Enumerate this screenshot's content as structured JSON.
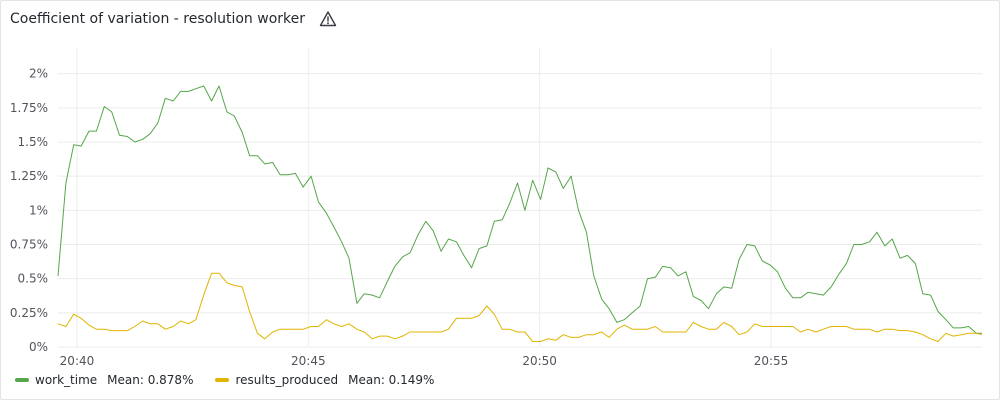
{
  "panel": {
    "title": "Coefficient of variation - resolution worker",
    "warning_icon": "warning-triangle-icon"
  },
  "legend": [
    {
      "name": "work_time",
      "mean_label": "Mean: 0.878%",
      "color": "#56a64b"
    },
    {
      "name": "results_produced",
      "mean_label": "Mean: 0.149%",
      "color": "#e0b400"
    }
  ],
  "colors": {
    "grid": "#ececec",
    "axis_text": "#52545c"
  },
  "chart_data": {
    "type": "line",
    "title": "Coefficient of variation - resolution worker",
    "xlabel": "",
    "ylabel": "",
    "x_unit": "minutes",
    "xlim": [
      39.59,
      59.56
    ],
    "ylim": [
      0,
      2.1
    ],
    "y_ticks": [
      {
        "value": 0,
        "label": "0%"
      },
      {
        "value": 0.25,
        "label": "0.25%"
      },
      {
        "value": 0.5,
        "label": "0.5%"
      },
      {
        "value": 0.75,
        "label": "0.75%"
      },
      {
        "value": 1,
        "label": "1%"
      },
      {
        "value": 1.25,
        "label": "1.25%"
      },
      {
        "value": 1.5,
        "label": "1.5%"
      },
      {
        "value": 1.75,
        "label": "1.75%"
      },
      {
        "value": 2,
        "label": "2%"
      }
    ],
    "x_ticks": [
      {
        "value": 40,
        "label": "20:40"
      },
      {
        "value": 45,
        "label": "20:45"
      },
      {
        "value": 50,
        "label": "20:50"
      },
      {
        "value": 55,
        "label": "20:55"
      }
    ],
    "grid": true,
    "legend_position": "bottom-left",
    "series": [
      {
        "name": "work_time",
        "color": "#56a64b",
        "x": [
          39.59,
          39.76,
          39.93,
          40.09,
          40.26,
          40.42,
          40.59,
          40.75,
          40.92,
          41.09,
          41.25,
          41.42,
          41.58,
          41.75,
          41.91,
          42.08,
          42.24,
          42.41,
          42.57,
          42.74,
          42.91,
          43.07,
          43.24,
          43.4,
          43.57,
          43.73,
          43.9,
          44.06,
          44.23,
          44.39,
          44.56,
          44.72,
          44.89,
          45.06,
          45.22,
          45.39,
          45.55,
          45.72,
          45.88,
          46.05,
          46.21,
          46.38,
          46.54,
          46.71,
          46.87,
          47.04,
          47.2,
          47.37,
          47.54,
          47.7,
          47.87,
          48.03,
          48.2,
          48.36,
          48.53,
          48.69,
          48.86,
          49.02,
          49.19,
          49.35,
          49.52,
          49.68,
          49.85,
          50.02,
          50.18,
          50.35,
          50.51,
          50.68,
          50.84,
          51.01,
          51.17,
          51.34,
          51.5,
          51.67,
          51.83,
          52.0,
          52.17,
          52.33,
          52.5,
          52.66,
          52.83,
          52.99,
          53.16,
          53.32,
          53.49,
          53.65,
          53.82,
          53.98,
          54.15,
          54.31,
          54.48,
          54.65,
          54.81,
          54.98,
          55.14,
          55.31,
          55.47,
          55.64,
          55.8,
          55.97,
          56.13,
          56.3,
          56.46,
          56.63,
          56.79,
          56.96,
          57.13,
          57.29,
          57.46,
          57.62,
          57.79,
          57.95,
          58.12,
          58.28,
          58.45,
          58.61,
          58.78,
          58.94,
          59.11,
          59.27,
          59.44,
          59.56
        ],
        "y": [
          0.52,
          1.2,
          1.48,
          1.47,
          1.58,
          1.58,
          1.76,
          1.72,
          1.55,
          1.54,
          1.5,
          1.52,
          1.56,
          1.64,
          1.82,
          1.8,
          1.87,
          1.87,
          1.89,
          1.91,
          1.8,
          1.91,
          1.72,
          1.69,
          1.57,
          1.4,
          1.4,
          1.34,
          1.35,
          1.26,
          1.26,
          1.27,
          1.17,
          1.25,
          1.06,
          0.98,
          0.88,
          0.77,
          0.65,
          0.32,
          0.39,
          0.38,
          0.36,
          0.48,
          0.59,
          0.66,
          0.69,
          0.82,
          0.92,
          0.85,
          0.7,
          0.79,
          0.77,
          0.67,
          0.58,
          0.72,
          0.74,
          0.92,
          0.93,
          1.05,
          1.2,
          1.0,
          1.22,
          1.08,
          1.31,
          1.28,
          1.16,
          1.25,
          1.0,
          0.84,
          0.52,
          0.35,
          0.28,
          0.18,
          0.2,
          0.25,
          0.3,
          0.5,
          0.51,
          0.59,
          0.58,
          0.52,
          0.55,
          0.37,
          0.34,
          0.28,
          0.39,
          0.44,
          0.43,
          0.64,
          0.75,
          0.74,
          0.63,
          0.6,
          0.55,
          0.43,
          0.36,
          0.36,
          0.4,
          0.39,
          0.38,
          0.44,
          0.53,
          0.61,
          0.75,
          0.75,
          0.77,
          0.84,
          0.74,
          0.79,
          0.65,
          0.67,
          0.61,
          0.39,
          0.38,
          0.26,
          0.2,
          0.14,
          0.14,
          0.15,
          0.1,
          0.1
        ]
      },
      {
        "name": "results_produced",
        "color": "#e0b400",
        "x": [
          39.59,
          39.76,
          39.93,
          40.09,
          40.26,
          40.42,
          40.59,
          40.75,
          40.92,
          41.09,
          41.25,
          41.42,
          41.58,
          41.75,
          41.91,
          42.08,
          42.24,
          42.41,
          42.57,
          42.74,
          42.91,
          43.07,
          43.24,
          43.4,
          43.57,
          43.73,
          43.9,
          44.06,
          44.23,
          44.39,
          44.56,
          44.72,
          44.89,
          45.06,
          45.22,
          45.39,
          45.55,
          45.72,
          45.88,
          46.05,
          46.21,
          46.38,
          46.54,
          46.71,
          46.87,
          47.04,
          47.2,
          47.37,
          47.54,
          47.7,
          47.87,
          48.03,
          48.2,
          48.36,
          48.53,
          48.69,
          48.86,
          49.02,
          49.19,
          49.35,
          49.52,
          49.68,
          49.85,
          50.02,
          50.18,
          50.35,
          50.51,
          50.68,
          50.84,
          51.01,
          51.17,
          51.34,
          51.5,
          51.67,
          51.83,
          52.0,
          52.17,
          52.33,
          52.5,
          52.66,
          52.83,
          52.99,
          53.16,
          53.32,
          53.49,
          53.65,
          53.82,
          53.98,
          54.15,
          54.31,
          54.48,
          54.65,
          54.81,
          54.98,
          55.14,
          55.31,
          55.47,
          55.64,
          55.8,
          55.97,
          56.13,
          56.3,
          56.46,
          56.63,
          56.79,
          56.96,
          57.13,
          57.29,
          57.46,
          57.62,
          57.79,
          57.95,
          58.12,
          58.28,
          58.45,
          58.61,
          58.78,
          58.94,
          59.11,
          59.27,
          59.44,
          59.56
        ],
        "y": [
          0.17,
          0.15,
          0.24,
          0.21,
          0.16,
          0.13,
          0.13,
          0.12,
          0.12,
          0.12,
          0.15,
          0.19,
          0.17,
          0.17,
          0.13,
          0.15,
          0.19,
          0.17,
          0.2,
          0.38,
          0.54,
          0.54,
          0.47,
          0.45,
          0.44,
          0.26,
          0.1,
          0.06,
          0.11,
          0.13,
          0.13,
          0.13,
          0.13,
          0.15,
          0.15,
          0.2,
          0.17,
          0.15,
          0.17,
          0.13,
          0.11,
          0.06,
          0.08,
          0.08,
          0.06,
          0.08,
          0.11,
          0.11,
          0.11,
          0.11,
          0.11,
          0.13,
          0.21,
          0.21,
          0.21,
          0.23,
          0.3,
          0.24,
          0.13,
          0.13,
          0.11,
          0.11,
          0.04,
          0.04,
          0.06,
          0.05,
          0.09,
          0.07,
          0.07,
          0.09,
          0.09,
          0.11,
          0.07,
          0.13,
          0.16,
          0.13,
          0.13,
          0.13,
          0.15,
          0.11,
          0.11,
          0.11,
          0.11,
          0.18,
          0.15,
          0.13,
          0.13,
          0.18,
          0.15,
          0.09,
          0.11,
          0.17,
          0.15,
          0.15,
          0.15,
          0.15,
          0.15,
          0.11,
          0.13,
          0.11,
          0.13,
          0.15,
          0.15,
          0.15,
          0.13,
          0.13,
          0.13,
          0.11,
          0.13,
          0.13,
          0.12,
          0.12,
          0.11,
          0.09,
          0.06,
          0.04,
          0.1,
          0.08,
          0.09,
          0.1,
          0.1,
          0.09
        ]
      }
    ]
  }
}
